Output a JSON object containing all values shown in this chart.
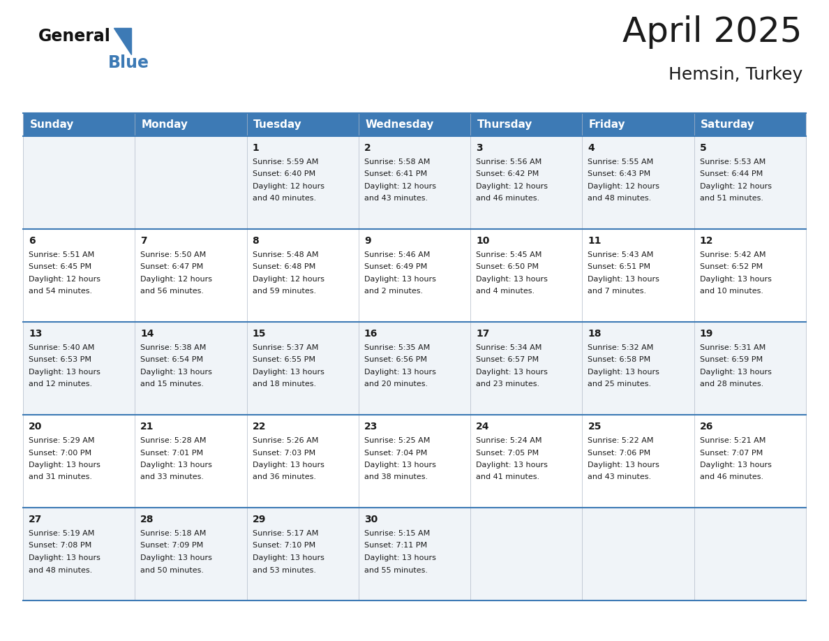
{
  "title": "April 2025",
  "subtitle": "Hemsin, Turkey",
  "header_bg_color": "#3d7ab5",
  "header_text_color": "#ffffff",
  "text_color": "#1a1a1a",
  "line_color": "#3d7ab5",
  "row_colors": [
    "#f0f4f8",
    "#ffffff",
    "#f0f4f8",
    "#ffffff",
    "#f0f4f8"
  ],
  "day_names": [
    "Sunday",
    "Monday",
    "Tuesday",
    "Wednesday",
    "Thursday",
    "Friday",
    "Saturday"
  ],
  "logo_general_color": "#111111",
  "logo_blue_color": "#3d7ab5",
  "days": [
    {
      "date": 1,
      "col": 2,
      "row": 0,
      "sunrise": "5:59 AM",
      "sunset": "6:40 PM",
      "daylight_h": "12 hours",
      "daylight_m": "40 minutes."
    },
    {
      "date": 2,
      "col": 3,
      "row": 0,
      "sunrise": "5:58 AM",
      "sunset": "6:41 PM",
      "daylight_h": "12 hours",
      "daylight_m": "43 minutes."
    },
    {
      "date": 3,
      "col": 4,
      "row": 0,
      "sunrise": "5:56 AM",
      "sunset": "6:42 PM",
      "daylight_h": "12 hours",
      "daylight_m": "46 minutes."
    },
    {
      "date": 4,
      "col": 5,
      "row": 0,
      "sunrise": "5:55 AM",
      "sunset": "6:43 PM",
      "daylight_h": "12 hours",
      "daylight_m": "48 minutes."
    },
    {
      "date": 5,
      "col": 6,
      "row": 0,
      "sunrise": "5:53 AM",
      "sunset": "6:44 PM",
      "daylight_h": "12 hours",
      "daylight_m": "51 minutes."
    },
    {
      "date": 6,
      "col": 0,
      "row": 1,
      "sunrise": "5:51 AM",
      "sunset": "6:45 PM",
      "daylight_h": "12 hours",
      "daylight_m": "54 minutes."
    },
    {
      "date": 7,
      "col": 1,
      "row": 1,
      "sunrise": "5:50 AM",
      "sunset": "6:47 PM",
      "daylight_h": "12 hours",
      "daylight_m": "56 minutes."
    },
    {
      "date": 8,
      "col": 2,
      "row": 1,
      "sunrise": "5:48 AM",
      "sunset": "6:48 PM",
      "daylight_h": "12 hours",
      "daylight_m": "59 minutes."
    },
    {
      "date": 9,
      "col": 3,
      "row": 1,
      "sunrise": "5:46 AM",
      "sunset": "6:49 PM",
      "daylight_h": "13 hours",
      "daylight_m": "2 minutes."
    },
    {
      "date": 10,
      "col": 4,
      "row": 1,
      "sunrise": "5:45 AM",
      "sunset": "6:50 PM",
      "daylight_h": "13 hours",
      "daylight_m": "4 minutes."
    },
    {
      "date": 11,
      "col": 5,
      "row": 1,
      "sunrise": "5:43 AM",
      "sunset": "6:51 PM",
      "daylight_h": "13 hours",
      "daylight_m": "7 minutes."
    },
    {
      "date": 12,
      "col": 6,
      "row": 1,
      "sunrise": "5:42 AM",
      "sunset": "6:52 PM",
      "daylight_h": "13 hours",
      "daylight_m": "10 minutes."
    },
    {
      "date": 13,
      "col": 0,
      "row": 2,
      "sunrise": "5:40 AM",
      "sunset": "6:53 PM",
      "daylight_h": "13 hours",
      "daylight_m": "12 minutes."
    },
    {
      "date": 14,
      "col": 1,
      "row": 2,
      "sunrise": "5:38 AM",
      "sunset": "6:54 PM",
      "daylight_h": "13 hours",
      "daylight_m": "15 minutes."
    },
    {
      "date": 15,
      "col": 2,
      "row": 2,
      "sunrise": "5:37 AM",
      "sunset": "6:55 PM",
      "daylight_h": "13 hours",
      "daylight_m": "18 minutes."
    },
    {
      "date": 16,
      "col": 3,
      "row": 2,
      "sunrise": "5:35 AM",
      "sunset": "6:56 PM",
      "daylight_h": "13 hours",
      "daylight_m": "20 minutes."
    },
    {
      "date": 17,
      "col": 4,
      "row": 2,
      "sunrise": "5:34 AM",
      "sunset": "6:57 PM",
      "daylight_h": "13 hours",
      "daylight_m": "23 minutes."
    },
    {
      "date": 18,
      "col": 5,
      "row": 2,
      "sunrise": "5:32 AM",
      "sunset": "6:58 PM",
      "daylight_h": "13 hours",
      "daylight_m": "25 minutes."
    },
    {
      "date": 19,
      "col": 6,
      "row": 2,
      "sunrise": "5:31 AM",
      "sunset": "6:59 PM",
      "daylight_h": "13 hours",
      "daylight_m": "28 minutes."
    },
    {
      "date": 20,
      "col": 0,
      "row": 3,
      "sunrise": "5:29 AM",
      "sunset": "7:00 PM",
      "daylight_h": "13 hours",
      "daylight_m": "31 minutes."
    },
    {
      "date": 21,
      "col": 1,
      "row": 3,
      "sunrise": "5:28 AM",
      "sunset": "7:01 PM",
      "daylight_h": "13 hours",
      "daylight_m": "33 minutes."
    },
    {
      "date": 22,
      "col": 2,
      "row": 3,
      "sunrise": "5:26 AM",
      "sunset": "7:03 PM",
      "daylight_h": "13 hours",
      "daylight_m": "36 minutes."
    },
    {
      "date": 23,
      "col": 3,
      "row": 3,
      "sunrise": "5:25 AM",
      "sunset": "7:04 PM",
      "daylight_h": "13 hours",
      "daylight_m": "38 minutes."
    },
    {
      "date": 24,
      "col": 4,
      "row": 3,
      "sunrise": "5:24 AM",
      "sunset": "7:05 PM",
      "daylight_h": "13 hours",
      "daylight_m": "41 minutes."
    },
    {
      "date": 25,
      "col": 5,
      "row": 3,
      "sunrise": "5:22 AM",
      "sunset": "7:06 PM",
      "daylight_h": "13 hours",
      "daylight_m": "43 minutes."
    },
    {
      "date": 26,
      "col": 6,
      "row": 3,
      "sunrise": "5:21 AM",
      "sunset": "7:07 PM",
      "daylight_h": "13 hours",
      "daylight_m": "46 minutes."
    },
    {
      "date": 27,
      "col": 0,
      "row": 4,
      "sunrise": "5:19 AM",
      "sunset": "7:08 PM",
      "daylight_h": "13 hours",
      "daylight_m": "48 minutes."
    },
    {
      "date": 28,
      "col": 1,
      "row": 4,
      "sunrise": "5:18 AM",
      "sunset": "7:09 PM",
      "daylight_h": "13 hours",
      "daylight_m": "50 minutes."
    },
    {
      "date": 29,
      "col": 2,
      "row": 4,
      "sunrise": "5:17 AM",
      "sunset": "7:10 PM",
      "daylight_h": "13 hours",
      "daylight_m": "53 minutes."
    },
    {
      "date": 30,
      "col": 3,
      "row": 4,
      "sunrise": "5:15 AM",
      "sunset": "7:11 PM",
      "daylight_h": "13 hours",
      "daylight_m": "55 minutes."
    }
  ]
}
